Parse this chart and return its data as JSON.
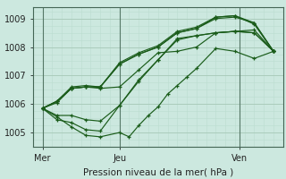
{
  "xlabel": "Pression niveau de la mer( hPa )",
  "bg_color": "#cce8df",
  "grid_color_major": "#aaccbb",
  "grid_color_minor": "#bbddd0",
  "line_color": "#1a5c1a",
  "xlim": [
    0,
    52
  ],
  "ylim": [
    1004.5,
    1009.4
  ],
  "yticks": [
    1005,
    1006,
    1007,
    1008,
    1009
  ],
  "xtick_positions": [
    2,
    18,
    43
  ],
  "xtick_labels": [
    "Mer",
    "Jeu",
    "Ven"
  ],
  "vline_positions": [
    2,
    18,
    43
  ],
  "lines": [
    [
      2,
      1005.85,
      5,
      1006.05,
      8,
      1006.55,
      11,
      1006.6,
      14,
      1006.55,
      18,
      1006.6,
      22,
      1007.2,
      26,
      1007.8,
      30,
      1007.85,
      34,
      1008.0,
      38,
      1008.5,
      42,
      1008.55,
      46,
      1008.6,
      50,
      1007.85
    ],
    [
      2,
      1005.85,
      5,
      1005.6,
      8,
      1005.6,
      11,
      1005.45,
      14,
      1005.4,
      18,
      1005.95,
      22,
      1006.85,
      26,
      1007.55,
      30,
      1008.3,
      34,
      1008.4,
      38,
      1008.5,
      42,
      1008.55,
      46,
      1008.5,
      50,
      1007.85
    ],
    [
      2,
      1005.85,
      5,
      1005.55,
      8,
      1005.2,
      11,
      1004.9,
      14,
      1004.85,
      18,
      1005.0,
      20,
      1004.85,
      22,
      1005.25,
      24,
      1005.6,
      26,
      1005.9,
      28,
      1006.35,
      30,
      1006.65,
      32,
      1006.95,
      34,
      1007.25,
      38,
      1007.95,
      42,
      1007.85,
      46,
      1007.6,
      50,
      1007.85
    ],
    [
      2,
      1005.85,
      5,
      1005.45,
      8,
      1005.35,
      11,
      1005.1,
      14,
      1005.05,
      18,
      1005.95,
      22,
      1006.8,
      26,
      1007.55,
      30,
      1008.25,
      34,
      1008.4,
      38,
      1008.5,
      42,
      1008.55,
      46,
      1008.5,
      50,
      1007.85
    ],
    [
      2,
      1005.85,
      5,
      1006.1,
      8,
      1006.55,
      11,
      1006.6,
      14,
      1006.6,
      18,
      1007.4,
      22,
      1007.75,
      26,
      1008.0,
      30,
      1008.5,
      34,
      1008.65,
      38,
      1009.0,
      42,
      1009.05,
      46,
      1008.85,
      50,
      1007.85
    ],
    [
      2,
      1005.85,
      5,
      1006.1,
      8,
      1006.55,
      11,
      1006.6,
      14,
      1006.6,
      18,
      1007.4,
      22,
      1007.75,
      26,
      1008.0,
      30,
      1008.5,
      34,
      1008.65,
      38,
      1009.05,
      42,
      1009.1,
      46,
      1008.8,
      50,
      1007.85
    ],
    [
      2,
      1005.85,
      5,
      1006.1,
      8,
      1006.6,
      11,
      1006.65,
      14,
      1006.6,
      18,
      1007.45,
      22,
      1007.8,
      26,
      1008.05,
      30,
      1008.55,
      34,
      1008.7,
      38,
      1009.05,
      42,
      1009.1,
      46,
      1008.85,
      50,
      1007.85
    ]
  ]
}
